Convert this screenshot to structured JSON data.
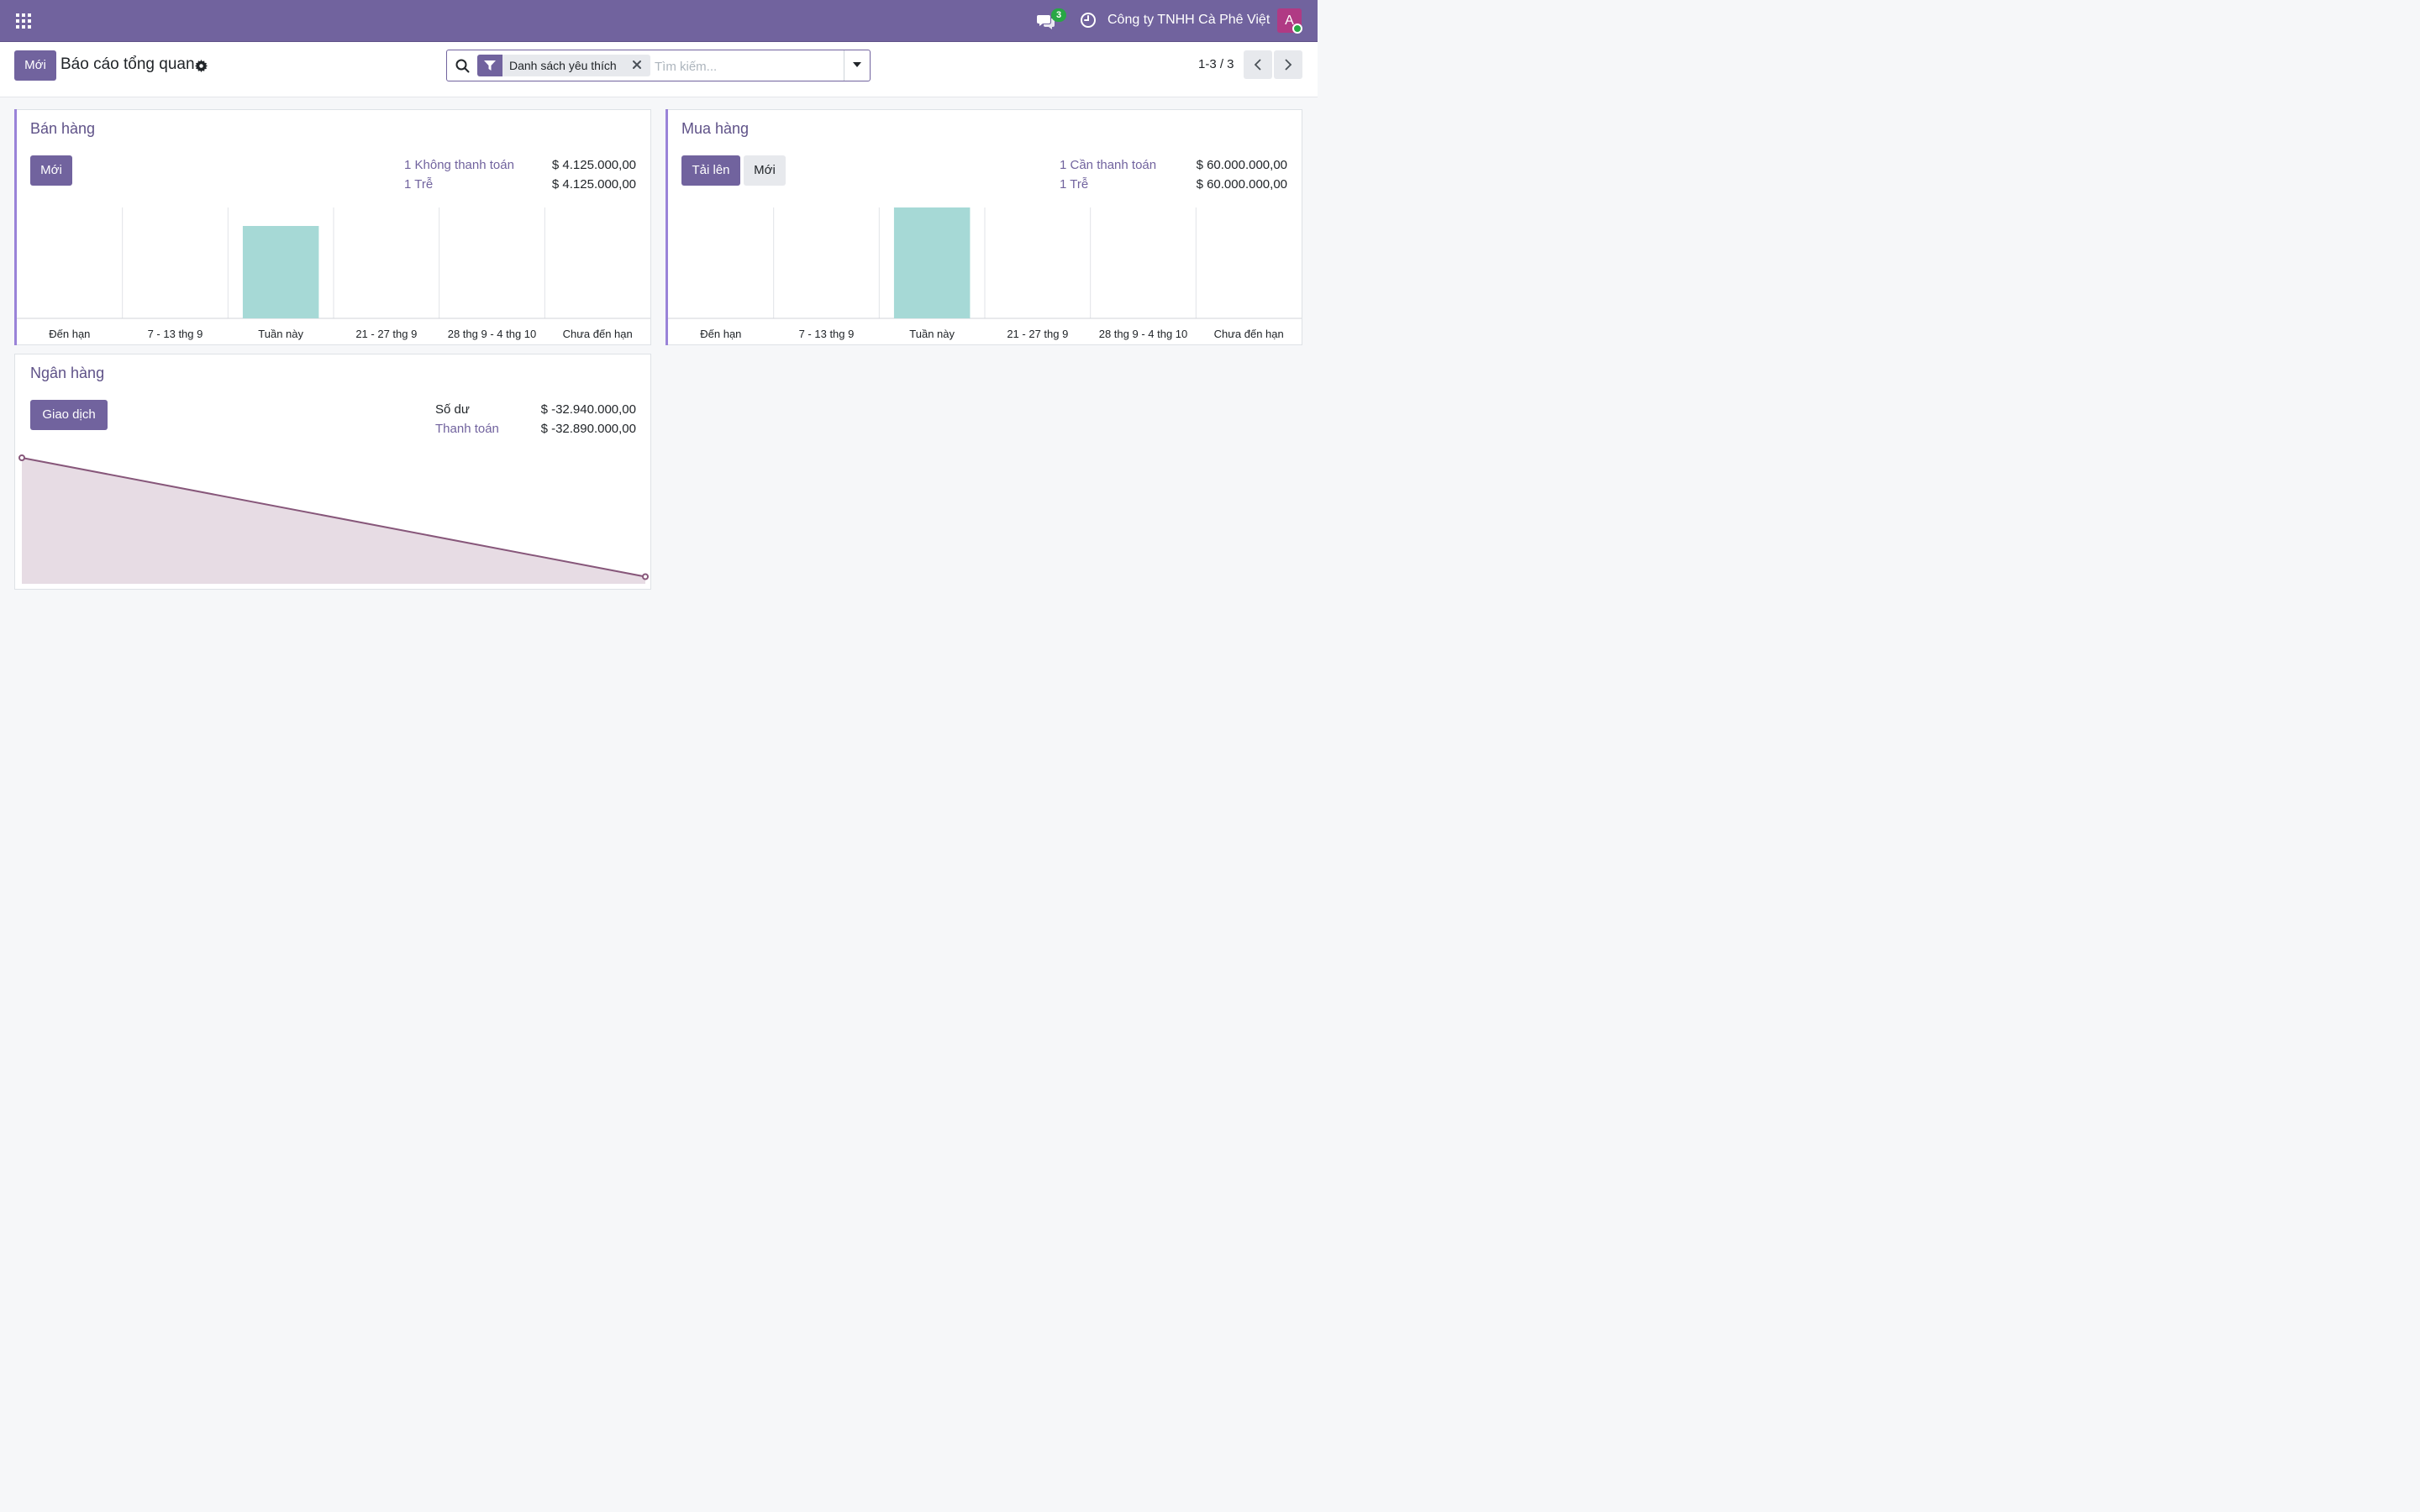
{
  "navbar": {
    "company": "Công ty TNHH Cà Phê Việt",
    "message_count": "3",
    "avatar_initial": "A",
    "accent_color": "#71639e"
  },
  "control_panel": {
    "new_button": "Mới",
    "title": "Báo cáo tổng quan",
    "search": {
      "facet": "Danh sách yêu thích",
      "placeholder": "Tìm kiếm..."
    },
    "pager": "1-3 / 3"
  },
  "cards": {
    "sales": {
      "title": "Bán hàng",
      "buttons": [
        "Mới"
      ],
      "stats": [
        {
          "label": "1 Không thanh toán",
          "value": "$ 4.125.000,00"
        },
        {
          "label": "1 Trễ",
          "value": "$ 4.125.000,00"
        }
      ]
    },
    "purchase": {
      "title": "Mua hàng",
      "buttons": [
        "Tải lên",
        "Mới"
      ],
      "stats": [
        {
          "label": "1 Cần thanh toán",
          "value": "$ 60.000.000,00"
        },
        {
          "label": "1 Trễ",
          "value": "$ 60.000.000,00"
        }
      ]
    },
    "bank": {
      "title": "Ngân hàng",
      "buttons": [
        "Giao dịch"
      ],
      "stats": [
        {
          "label": "Số dư",
          "value": "$ -32.940.000,00"
        },
        {
          "label": "Thanh toán",
          "value": "$ -32.890.000,00"
        }
      ]
    }
  },
  "chart_data": [
    {
      "type": "bar",
      "categories": [
        "Đến hạn",
        "7 - 13 thg 9",
        "Tuần này",
        "21 - 27 thg 9",
        "28 thg 9 - 4 thg 10",
        "Chưa đến hạn"
      ],
      "values": [
        0,
        0,
        4125000,
        0,
        0,
        0
      ],
      "ylim": [
        0,
        4950000
      ],
      "bar_color": "#a6d9d6"
    },
    {
      "type": "bar",
      "categories": [
        "Đến hạn",
        "7 - 13 thg 9",
        "Tuần này",
        "21 - 27 thg 9",
        "28 thg 9 - 4 thg 10",
        "Chưa đến hạn"
      ],
      "values": [
        0,
        0,
        60000000,
        0,
        0,
        0
      ],
      "ylim": [
        0,
        60000000
      ],
      "bar_color": "#a6d9d6"
    },
    {
      "type": "area",
      "x": [
        0,
        1
      ],
      "values": [
        -32890000,
        -32940000
      ],
      "line_color": "#87577a",
      "fill_color": "#e7dce4"
    }
  ]
}
